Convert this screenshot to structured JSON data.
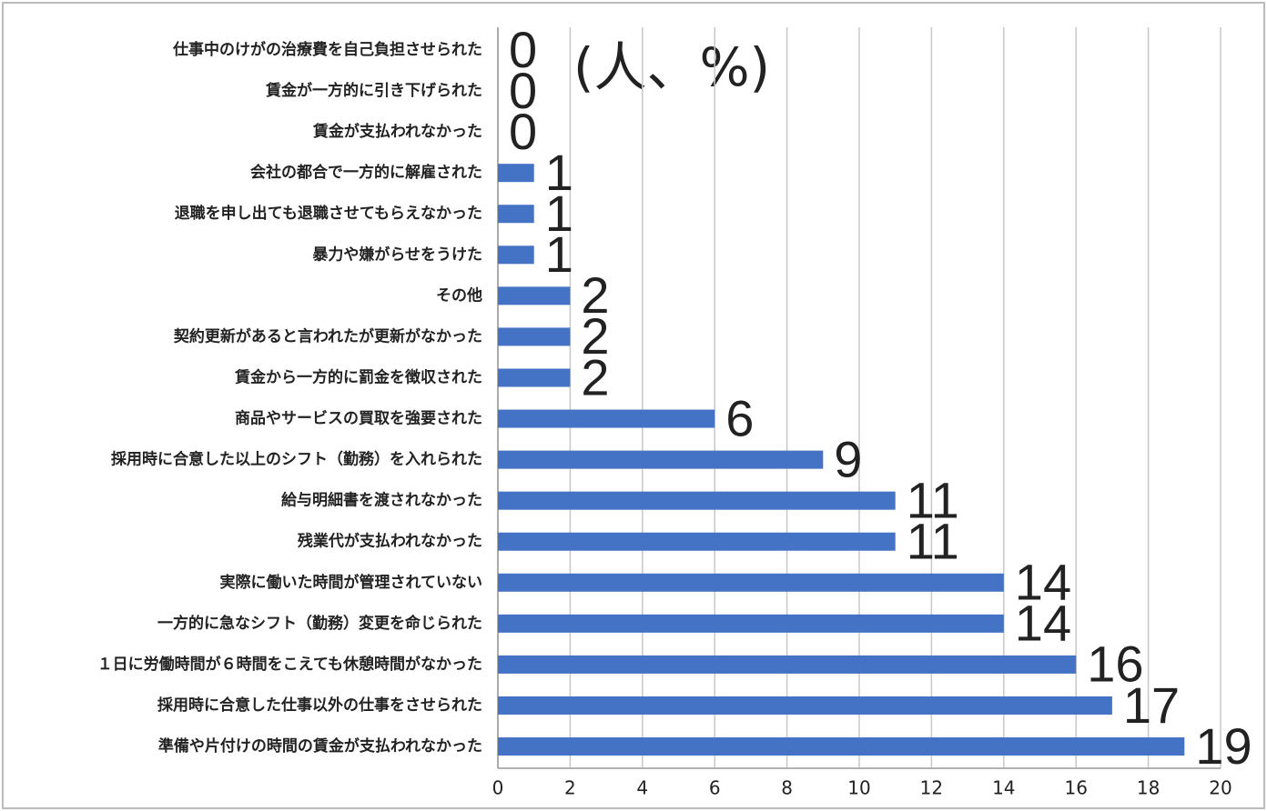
{
  "chart_data": {
    "type": "bar",
    "orientation": "horizontal",
    "unit_label": "(人、%)",
    "categories": [
      "仕事中のけがの治療費を自己負担させられた",
      "賃金が一方的に引き下げられた",
      "賃金が支払われなかった",
      "会社の都合で一方的に解雇された",
      "退職を申し出ても退職させてもらえなかった",
      "暴力や嫌がらせをうけた",
      "その他",
      "契約更新があると言われたが更新がなかった",
      "賃金から一方的に罰金を徴収された",
      "商品やサービスの買取を強要された",
      "採用時に合意した以上のシフト（勤務）を入れられた",
      "給与明細書を渡されなかった",
      "残業代が支払われなかった",
      "実際に働いた時間が管理されていない",
      "一方的に急なシフト（勤務）変更を命じられた",
      "１日に労働時間が６時間をこえても休憩時間がなかった",
      "採用時に合意した仕事以外の仕事をさせられた",
      "準備や片付けの時間の賃金が支払われなかった"
    ],
    "values": [
      0,
      0,
      0,
      1,
      1,
      1,
      2,
      2,
      2,
      6,
      9,
      11,
      11,
      14,
      14,
      16,
      17,
      19
    ],
    "color": "#4472c4",
    "xlim": [
      0,
      20
    ],
    "xticks": [
      0,
      2,
      4,
      6,
      8,
      10,
      12,
      14,
      16,
      18,
      20
    ],
    "grid": true
  }
}
